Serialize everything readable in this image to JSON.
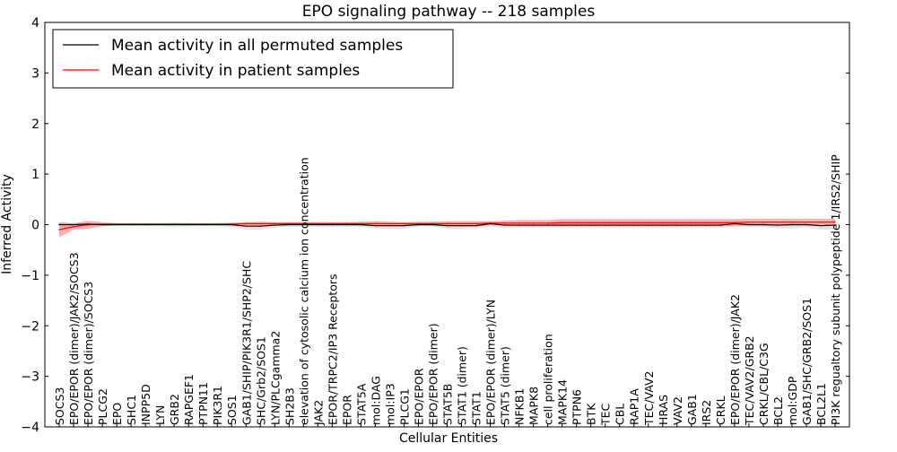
{
  "chart_data": {
    "type": "line",
    "title": "EPO signaling pathway -- 218 samples",
    "xlabel": "Cellular Entities",
    "ylabel": "Inferred Activity",
    "ylim": [
      -4,
      4
    ],
    "xlim": [
      -1,
      55
    ],
    "yticks": [
      -4,
      -3,
      -2,
      -1,
      0,
      1,
      2,
      3,
      4
    ],
    "ytick_labels": [
      "−4",
      "−3",
      "−2",
      "−1",
      "0",
      "1",
      "2",
      "3",
      "4"
    ],
    "legend_placement": "top-left",
    "categories": [
      "SOCS3",
      "EPO/EPOR (dimer)/JAK2/SOCS3",
      "EPO/EPOR (dimer)/SOCS3",
      "PLCG2",
      "EPO",
      "SHC1",
      "INPP5D",
      "LYN",
      "GRB2",
      "RAPGEF1",
      "PTPN11",
      "PIK3R1",
      "SOS1",
      "GAB1/SHIP/PIK3R1/SHP2/SHC",
      "SHC/Grb2/SOS1",
      "LYN/PLCgamma2",
      "SH2B3",
      "elevation of cytosolic calcium ion concentration",
      "JAK2",
      "EPOR/TRPC2/IP3 Receptors",
      "EPOR",
      "STAT5A",
      "mol:DAG",
      "mol:IP3",
      "PLCG1",
      "EPO/EPOR",
      "EPO/EPOR (dimer)",
      "STAT5B",
      "STAT1 (dimer)",
      "STAT1",
      "EPO/EPOR (dimer)/LYN",
      "STAT5 (dimer)",
      "NFKB1",
      "MAPK8",
      "cell proliferation",
      "MAPK14",
      "PTPN6",
      "BTK",
      "TEC",
      "CBL",
      "RAP1A",
      "TEC/VAV2",
      "HRAS",
      "VAV2",
      "GAB1",
      "IRS2",
      "CRKL",
      "EPO/EPOR (dimer)/JAK2",
      "TEC/VAV2/GRB2",
      "CRKL/CBL/C3G",
      "BCL2",
      "mol:GDP",
      "GAB1/SHC/GRB2/SOS1",
      "BCL2L1",
      "PI3K regualtory subunit polypeptide 1/IRS2/SHIP"
    ],
    "series": [
      {
        "name": "Mean activity in all permuted samples",
        "color": "#000000",
        "band_color": "#d9d9d9",
        "values": [
          0,
          0,
          0.01,
          0,
          0,
          0,
          0,
          0,
          0,
          0,
          0,
          0,
          0,
          -0.03,
          -0.03,
          -0.01,
          0,
          0,
          0,
          0,
          0,
          0,
          -0.02,
          -0.02,
          -0.02,
          0,
          0,
          -0.02,
          -0.02,
          -0.02,
          0.02,
          -0.01,
          -0.01,
          -0.01,
          -0.01,
          -0.01,
          -0.01,
          -0.01,
          -0.01,
          -0.01,
          -0.01,
          -0.01,
          -0.01,
          -0.01,
          -0.01,
          -0.01,
          -0.01,
          0.02,
          0,
          0,
          -0.01,
          0,
          0,
          -0.02,
          -0.01
        ],
        "spread": [
          0.04,
          0.04,
          0.04,
          0.03,
          0.03,
          0.03,
          0.03,
          0.03,
          0.04,
          0.03,
          0.03,
          0.03,
          0.04,
          0.07,
          0.07,
          0.05,
          0.04,
          0.04,
          0.04,
          0.04,
          0.04,
          0.04,
          0.06,
          0.06,
          0.06,
          0.04,
          0.04,
          0.06,
          0.06,
          0.05,
          0.05,
          0.06,
          0.05,
          0.05,
          0.05,
          0.05,
          0.05,
          0.05,
          0.05,
          0.05,
          0.05,
          0.05,
          0.05,
          0.05,
          0.05,
          0.05,
          0.05,
          0.05,
          0.05,
          0.05,
          0.06,
          0.08,
          0.05,
          0.08,
          0.08
        ]
      },
      {
        "name": "Mean activity in patient samples",
        "color": "#ff0000",
        "band_color": "#ff9090",
        "values": [
          -0.1,
          -0.04,
          0,
          0.01,
          0.01,
          0.01,
          0.01,
          0.01,
          0.01,
          0.01,
          0.01,
          0.01,
          0.01,
          0.02,
          0.02,
          0.02,
          0.02,
          0.02,
          0.02,
          0.02,
          0.02,
          0.02,
          0.02,
          0.02,
          0.02,
          0.02,
          0.02,
          0.02,
          0.02,
          0.02,
          0.03,
          0.03,
          0.03,
          0.03,
          0.03,
          0.04,
          0.04,
          0.04,
          0.04,
          0.04,
          0.04,
          0.04,
          0.04,
          0.04,
          0.04,
          0.04,
          0.04,
          0.04,
          0.05,
          0.05,
          0.05,
          0.05,
          0.05,
          0.05,
          0.05
        ],
        "spread": [
          0.15,
          0.06,
          0.08,
          0.04,
          0.02,
          0.02,
          0.02,
          0.02,
          0.02,
          0.02,
          0.02,
          0.02,
          0.03,
          0.03,
          0.04,
          0.03,
          0.03,
          0.03,
          0.03,
          0.03,
          0.03,
          0.04,
          0.05,
          0.04,
          0.03,
          0.04,
          0.04,
          0.05,
          0.05,
          0.05,
          0.04,
          0.05,
          0.06,
          0.06,
          0.06,
          0.07,
          0.07,
          0.07,
          0.07,
          0.07,
          0.07,
          0.07,
          0.07,
          0.07,
          0.07,
          0.07,
          0.07,
          0.07,
          0.07,
          0.07,
          0.07,
          0.07,
          0.07,
          0.07,
          0.06
        ]
      }
    ]
  }
}
